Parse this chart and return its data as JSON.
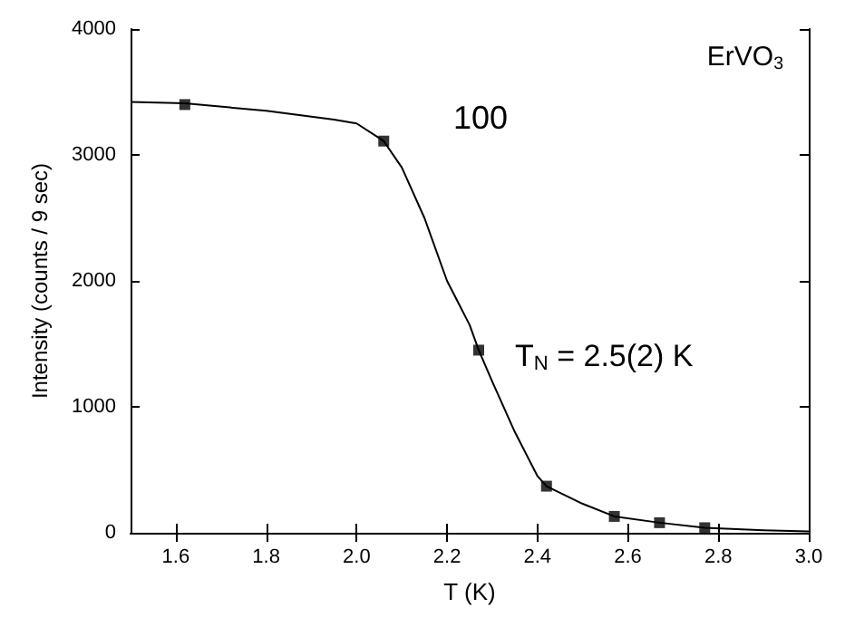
{
  "chart_data": {
    "type": "scatter",
    "xlabel": "T (K)",
    "ylabel": "Intensity (counts / 9 sec)",
    "xlim": [
      1.5,
      3.0
    ],
    "xticks": [
      1.6,
      1.8,
      {
        "value": 2,
        "label": "2.0"
      },
      2.2,
      2.4,
      2.6,
      2.8,
      {
        "value": 3,
        "label": "3.0"
      }
    ],
    "ylim": [
      0,
      4000
    ],
    "yticks": [
      0,
      1000,
      2000,
      3000,
      4000
    ],
    "grid": false,
    "annotations": [
      "ErVO$_{3}$",
      "100",
      "T$_{N}$ = 2.5(2) K"
    ],
    "series": [
      {
        "marker": "square",
        "color": "#000000",
        "x": [
          1.62,
          2.06,
          2.27,
          2.42,
          2.57,
          2.67,
          2.77
        ],
        "values": [
          3400,
          3110,
          1450,
          370,
          130,
          80,
          40
        ]
      },
      {
        "type": "line",
        "marker": "none",
        "line_style": "solid",
        "color": "#000000",
        "x": [
          1.5,
          1.62,
          1.8,
          1.95,
          2.0,
          2.06,
          2.1,
          2.15,
          2.2,
          2.25,
          2.27,
          2.3,
          2.35,
          2.4,
          2.42,
          2.5,
          2.57,
          2.67,
          2.77,
          2.9,
          3.0
        ],
        "values": [
          3420,
          3410,
          3350,
          3280,
          3250,
          3110,
          2900,
          2500,
          2000,
          1650,
          1450,
          1200,
          800,
          450,
          370,
          230,
          130,
          80,
          40,
          20,
          10
        ]
      }
    ]
  }
}
